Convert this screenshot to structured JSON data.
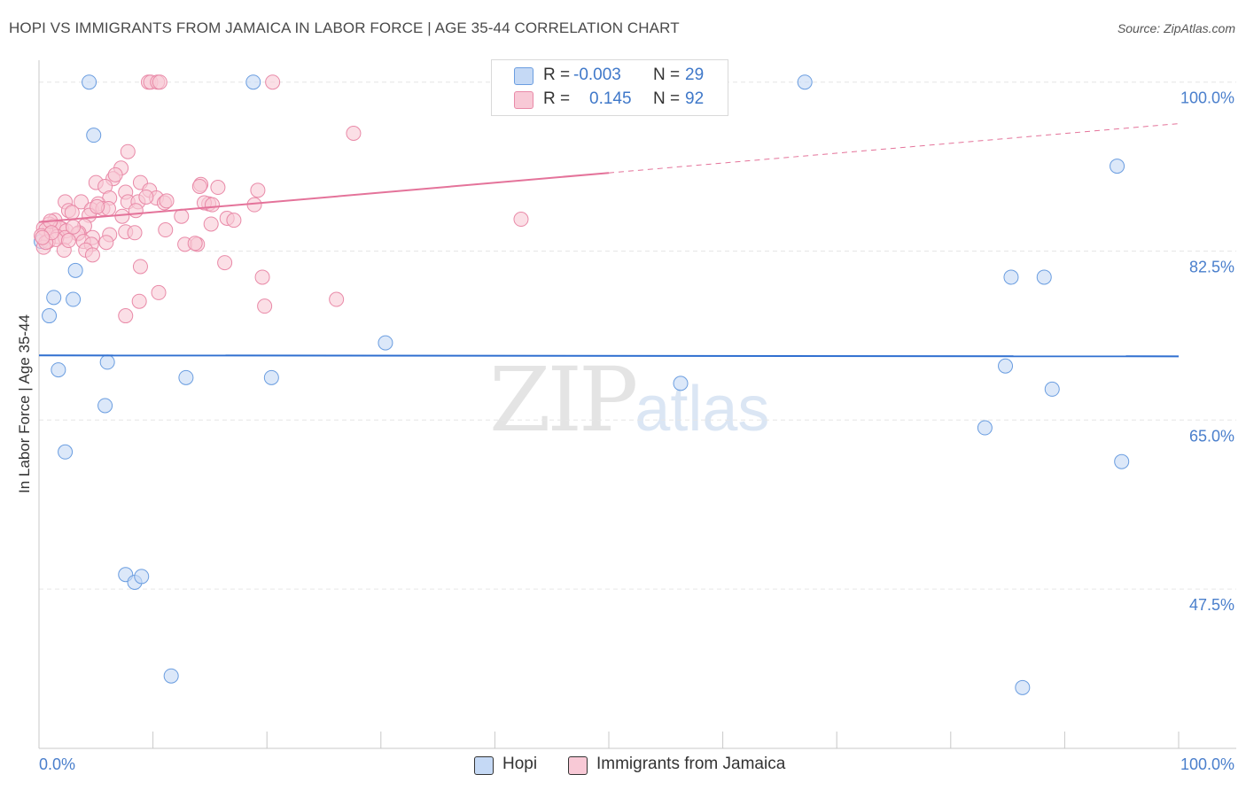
{
  "title": "HOPI VS IMMIGRANTS FROM JAMAICA IN LABOR FORCE | AGE 35-44 CORRELATION CHART",
  "source": "Source: ZipAtlas.com",
  "watermark": {
    "zip": "ZIP",
    "atlas": "atlas"
  },
  "legend": {
    "rows": [
      {
        "r_label": "R =",
        "r_value": "-0.003",
        "n_label": "N =",
        "n_value": "29"
      },
      {
        "r_label": "R =",
        "r_value": "0.145",
        "n_label": "N =",
        "n_value": "92"
      }
    ],
    "series_names": [
      "Hopi",
      "Immigrants from Jamaica"
    ]
  },
  "colors": {
    "hopi_fill": "#c5d9f5",
    "hopi_stroke": "#6a9de0",
    "hopi_line": "#2f6fd0",
    "jam_fill": "#f8c9d6",
    "jam_stroke": "#e98aa8",
    "jam_line": "#e4739a",
    "axis_text": "#4a7fcc",
    "grid": "#e6e6e6"
  },
  "chart_data": {
    "type": "scatter",
    "title": "HOPI VS IMMIGRANTS FROM JAMAICA IN LABOR FORCE | AGE 35-44 CORRELATION CHART",
    "xlabel": "",
    "ylabel": "In Labor Force | Age 35-44",
    "xlim": [
      0,
      100
    ],
    "ylim": [
      31,
      103
    ],
    "x_tick_labels": [
      "0.0%",
      "100.0%"
    ],
    "y_ticks": [
      {
        "value": 100,
        "label": "100.0%"
      },
      {
        "value": 82.5,
        "label": "82.5%"
      },
      {
        "value": 65,
        "label": "65.0%"
      },
      {
        "value": 47.5,
        "label": "47.5%"
      }
    ],
    "series": [
      {
        "name": "Hopi",
        "r": -0.003,
        "n": 29,
        "trend": {
          "x": [
            0,
            100
          ],
          "y": [
            71.7,
            71.6
          ],
          "dashed_from": null
        },
        "points": [
          [
            4.4,
            100
          ],
          [
            18.8,
            100
          ],
          [
            67.2,
            100
          ],
          [
            4.8,
            94.5
          ],
          [
            94.6,
            91.3
          ],
          [
            3.2,
            80.5
          ],
          [
            1.3,
            77.7
          ],
          [
            3.0,
            77.5
          ],
          [
            0.9,
            75.8
          ],
          [
            85.3,
            79.8
          ],
          [
            88.2,
            79.8
          ],
          [
            30.4,
            73.0
          ],
          [
            6.0,
            71.0
          ],
          [
            1.7,
            70.2
          ],
          [
            12.9,
            69.4
          ],
          [
            20.4,
            69.4
          ],
          [
            56.3,
            68.8
          ],
          [
            88.9,
            68.2
          ],
          [
            5.8,
            66.5
          ],
          [
            84.8,
            70.6
          ],
          [
            83.0,
            64.2
          ],
          [
            2.3,
            61.7
          ],
          [
            95.0,
            60.7
          ],
          [
            7.6,
            49.0
          ],
          [
            8.4,
            48.2
          ],
          [
            9.0,
            48.8
          ],
          [
            11.6,
            38.5
          ],
          [
            86.3,
            37.3
          ],
          [
            0.2,
            83.5
          ]
        ]
      },
      {
        "name": "Immigrants from Jamaica",
        "r": 0.145,
        "n": 92,
        "trend": {
          "x": [
            0,
            50,
            100
          ],
          "y": [
            85.5,
            90.6,
            95.7
          ],
          "dashed_from": 50
        },
        "points": [
          [
            9.6,
            100
          ],
          [
            9.8,
            100
          ],
          [
            10.4,
            100
          ],
          [
            10.6,
            100
          ],
          [
            20.5,
            100
          ],
          [
            27.6,
            94.7
          ],
          [
            7.8,
            92.8
          ],
          [
            7.2,
            91.1
          ],
          [
            6.5,
            90.0
          ],
          [
            8.9,
            89.6
          ],
          [
            5.0,
            89.6
          ],
          [
            6.7,
            90.4
          ],
          [
            14.2,
            89.4
          ],
          [
            14.1,
            89.2
          ],
          [
            9.7,
            88.8
          ],
          [
            15.7,
            89.1
          ],
          [
            19.2,
            88.8
          ],
          [
            5.8,
            89.2
          ],
          [
            10.3,
            88.0
          ],
          [
            7.6,
            88.6
          ],
          [
            6.2,
            88.0
          ],
          [
            7.8,
            87.6
          ],
          [
            5.2,
            87.4
          ],
          [
            8.7,
            87.6
          ],
          [
            2.3,
            87.6
          ],
          [
            3.7,
            87.6
          ],
          [
            11.0,
            87.5
          ],
          [
            14.9,
            87.4
          ],
          [
            14.5,
            87.5
          ],
          [
            18.9,
            87.3
          ],
          [
            4.6,
            86.8
          ],
          [
            5.6,
            86.9
          ],
          [
            2.6,
            86.7
          ],
          [
            4.4,
            86.2
          ],
          [
            7.3,
            86.1
          ],
          [
            12.5,
            86.1
          ],
          [
            1.4,
            85.7
          ],
          [
            2.0,
            84.8
          ],
          [
            4.0,
            85.1
          ],
          [
            0.9,
            85.3
          ],
          [
            1.3,
            85.1
          ],
          [
            0.4,
            84.9
          ],
          [
            0.6,
            84.7
          ],
          [
            1.8,
            84.9
          ],
          [
            2.4,
            84.6
          ],
          [
            3.5,
            84.4
          ],
          [
            7.6,
            84.5
          ],
          [
            11.1,
            84.7
          ],
          [
            15.1,
            85.3
          ],
          [
            16.5,
            85.9
          ],
          [
            17.1,
            85.7
          ],
          [
            3.4,
            84.3
          ],
          [
            6.2,
            84.2
          ],
          [
            8.4,
            84.4
          ],
          [
            0.2,
            84.1
          ],
          [
            1.6,
            84.0
          ],
          [
            2.3,
            83.9
          ],
          [
            4.7,
            83.9
          ],
          [
            5.9,
            83.4
          ],
          [
            0.8,
            83.5
          ],
          [
            1.5,
            83.7
          ],
          [
            3.9,
            83.5
          ],
          [
            4.6,
            83.2
          ],
          [
            12.8,
            83.2
          ],
          [
            13.9,
            83.2
          ],
          [
            2.2,
            82.6
          ],
          [
            4.1,
            82.6
          ],
          [
            0.4,
            82.9
          ],
          [
            0.6,
            83.4
          ],
          [
            4.7,
            82.1
          ],
          [
            16.3,
            81.3
          ],
          [
            8.9,
            80.9
          ],
          [
            19.6,
            79.8
          ],
          [
            10.5,
            78.2
          ],
          [
            8.8,
            77.3
          ],
          [
            26.1,
            77.5
          ],
          [
            19.8,
            76.8
          ],
          [
            7.6,
            75.8
          ],
          [
            42.3,
            85.8
          ],
          [
            6.1,
            86.9
          ],
          [
            1.0,
            85.6
          ],
          [
            3.0,
            85.0
          ],
          [
            2.6,
            83.6
          ],
          [
            5.1,
            87.1
          ],
          [
            8.5,
            86.7
          ],
          [
            9.4,
            88.1
          ],
          [
            15.2,
            87.3
          ],
          [
            11.2,
            87.7
          ],
          [
            13.7,
            83.3
          ],
          [
            1.1,
            84.4
          ],
          [
            0.3,
            83.9
          ],
          [
            2.9,
            86.5
          ]
        ]
      }
    ]
  }
}
